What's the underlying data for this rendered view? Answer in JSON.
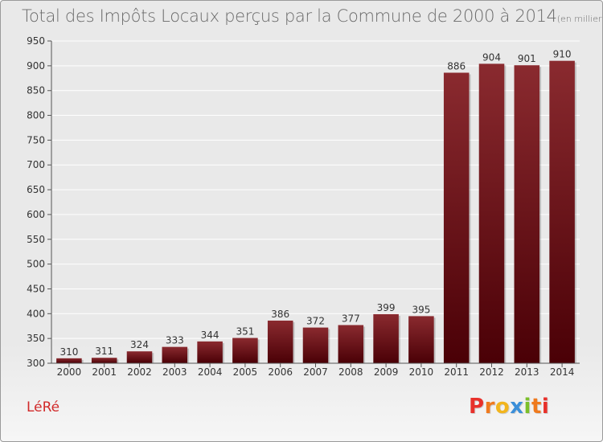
{
  "title": "Total des Impôts Locaux perçus par la Commune de 2000 à 2014",
  "subtitle": "(en milliers d'€)",
  "commune": "LéRé",
  "logo": {
    "letters": [
      "P",
      "r",
      "o",
      "x",
      "i",
      "t",
      "i"
    ],
    "colors": [
      "#e8302a",
      "#ef7a1e",
      "#f2b51d",
      "#3b8fd9",
      "#7bbf2a",
      "#ef7a1e",
      "#e8302a"
    ]
  },
  "colors": {
    "bar_top": "#8a2a2f",
    "bar_bottom": "#4a0006",
    "grid": "#ffffff",
    "axis_text": "#333333"
  },
  "chart_data": {
    "type": "bar",
    "title": "Total des Impôts Locaux perçus par la Commune de 2000 à 2014",
    "subtitle": "(en milliers d'€)",
    "xlabel": "",
    "ylabel": "",
    "categories": [
      "2000",
      "2001",
      "2002",
      "2003",
      "2004",
      "2005",
      "2006",
      "2007",
      "2008",
      "2009",
      "2010",
      "2011",
      "2012",
      "2013",
      "2014"
    ],
    "values": [
      310,
      311,
      324,
      333,
      344,
      351,
      386,
      372,
      377,
      399,
      395,
      886,
      904,
      901,
      910
    ],
    "ylim": [
      300,
      950
    ],
    "yticks": [
      300,
      350,
      400,
      450,
      500,
      550,
      600,
      650,
      700,
      750,
      800,
      850,
      900,
      950
    ],
    "grid": true,
    "data_labels": true
  }
}
